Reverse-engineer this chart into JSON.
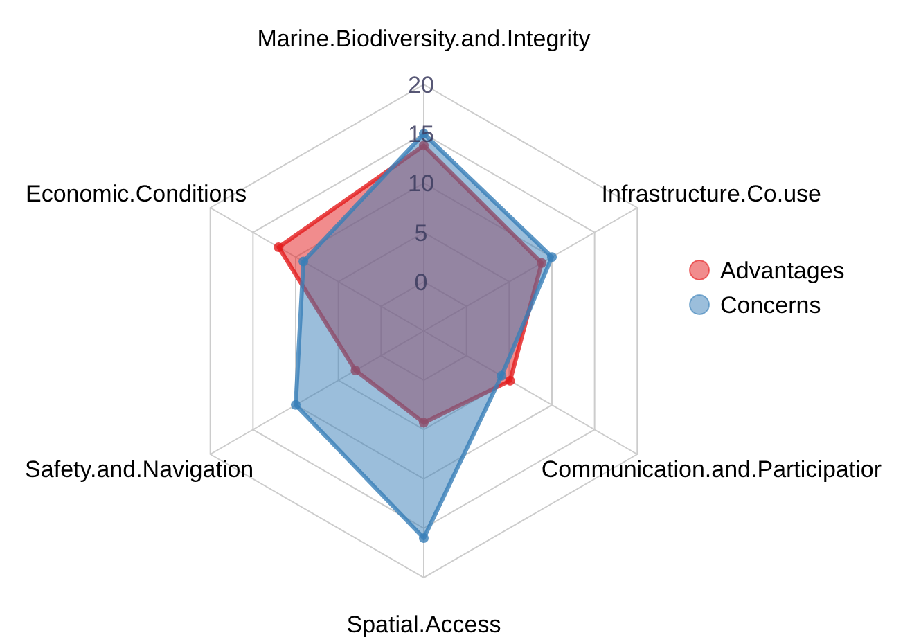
{
  "chart_data": {
    "type": "radar",
    "categories": [
      "Marine.Biodiversity.and.Integrity",
      "Infrastructure.Co.use",
      "Communication.and.Participatior",
      "Spatial.Access",
      "Safety.and.Navigation",
      "Economic.Conditions"
    ],
    "series": [
      {
        "name": "Advantages",
        "color": "#e41a1c",
        "values": [
          13.8,
          8.8,
          5.1,
          4.3,
          3.0,
          12.0
        ]
      },
      {
        "name": "Concerns",
        "color": "#377eb8",
        "values": [
          15,
          10,
          4.1,
          16,
          10,
          9.1
        ]
      }
    ],
    "ylim": [
      -5,
      20
    ],
    "yticks": [
      0,
      5,
      10,
      15,
      20
    ],
    "grid": true,
    "legend": "right",
    "marker": "circle",
    "line_style": "solid"
  }
}
